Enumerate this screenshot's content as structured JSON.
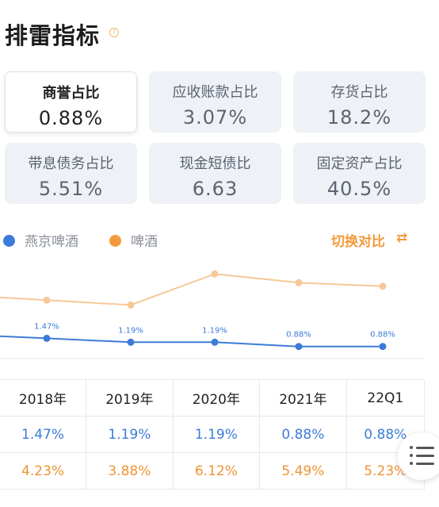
{
  "header": {
    "title": "排雷指标",
    "help_icon": "?"
  },
  "cards": [
    {
      "label": "商誉占比",
      "value": "0.88%",
      "active": true
    },
    {
      "label": "应收账款占比",
      "value": "3.07%"
    },
    {
      "label": "存货占比",
      "value": "18.2%"
    },
    {
      "label": "带息债务占比",
      "value": "5.51%"
    },
    {
      "label": "现金短债比",
      "value": "6.63"
    },
    {
      "label": "固定资产占比",
      "value": "40.5%"
    }
  ],
  "legend": {
    "items": [
      {
        "label": "燕京啤酒",
        "color": "#3d7bd9"
      },
      {
        "label": "啤酒",
        "color": "#f39a3a"
      }
    ],
    "switch_label": "切换对比",
    "switch_icon": "⇄"
  },
  "chart_data": {
    "type": "line",
    "x": [
      "2018年",
      "2019年",
      "2020年",
      "2021年",
      "22Q1"
    ],
    "ylim": [
      0,
      7
    ],
    "grid": false,
    "series": [
      {
        "name": "燕京啤酒",
        "color": "#3d7bd9",
        "values": [
          1.47,
          1.19,
          1.19,
          0.88,
          0.88
        ],
        "labels": [
          "1.47%",
          "1.19%",
          "1.19%",
          "0.88%",
          "0.88%"
        ]
      },
      {
        "name": "啤酒",
        "color": "#f7c898",
        "values": [
          4.23,
          3.88,
          6.12,
          5.49,
          5.23
        ]
      }
    ]
  },
  "table": {
    "headers": [
      "2018年",
      "2019年",
      "2020年",
      "2021年",
      "22Q1"
    ],
    "row1": [
      "1.47%",
      "1.19%",
      "1.19%",
      "0.88%",
      "0.88%"
    ],
    "row2": [
      "4.23%",
      "3.88%",
      "6.12%",
      "5.49%",
      "5.23%"
    ]
  }
}
